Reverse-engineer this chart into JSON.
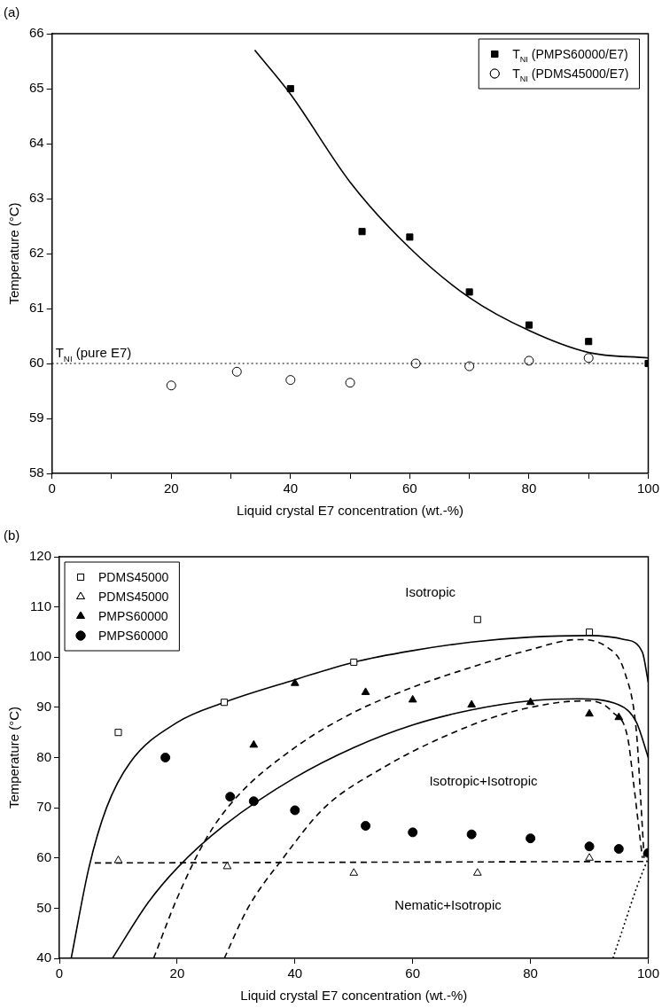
{
  "chart_data": [
    {
      "type": "scatter",
      "title": "(a)",
      "xlabel": "Liquid crystal E7 concentration (wt.-%)",
      "ylabel": "Temperature (°C)",
      "xlim": [
        0,
        100
      ],
      "xticks": [
        0,
        {
          "value": 10,
          "label": null
        },
        20,
        {
          "value": 30,
          "label": null
        },
        40,
        {
          "value": 50,
          "label": null
        },
        60,
        {
          "value": 70,
          "label": null
        },
        80,
        {
          "value": 90,
          "label": null
        },
        100
      ],
      "ylim": [
        58,
        66
      ],
      "yticks": [
        58,
        59,
        60,
        61,
        62,
        63,
        64,
        65,
        66
      ],
      "grid": false,
      "legend": "top right",
      "series": [
        {
          "name": "T$_{NI}$ (PMPS60000/E7)",
          "color": "#000000",
          "marker": "square",
          "x": [
            40,
            52,
            60,
            70,
            80,
            90,
            100
          ],
          "values": [
            65.0,
            62.4,
            62.3,
            61.3,
            60.7,
            60.4,
            60.0
          ]
        },
        {
          "name": "T$_{NI}$ (PDMS45000/E7)",
          "color": "#000000",
          "marker": "circle_open",
          "x": [
            20,
            31,
            40,
            50,
            61,
            70,
            80,
            90
          ],
          "values": [
            59.6,
            59.85,
            59.7,
            59.65,
            60.0,
            59.95,
            60.05,
            60.1
          ]
        },
        {
          "type": "line",
          "color": "#000000",
          "line_style": "solid",
          "x": [
            34,
            40,
            50,
            60,
            70,
            80,
            90,
            100
          ],
          "values": [
            65.7,
            64.9,
            63.3,
            62.1,
            61.2,
            60.6,
            60.2,
            60.1
          ]
        }
      ],
      "ref_lines": [
        {
          "axis": "y",
          "value": 60,
          "label": "T$_{NI}$ (pure E7)",
          "line_style": "dotted",
          "color": "#000000"
        }
      ]
    },
    {
      "type": "scatter",
      "title": "(b)",
      "xlabel": "Liquid crystal E7 concentration (wt.-%)",
      "ylabel": "Temperature (°C)",
      "xlim": [
        0,
        100
      ],
      "xticks": [
        0,
        20,
        40,
        60,
        80,
        100
      ],
      "ylim": [
        40,
        120
      ],
      "yticks": [
        40,
        50,
        60,
        70,
        80,
        90,
        100,
        110,
        120
      ],
      "grid": false,
      "legend": "top left",
      "series": [
        {
          "name": "PDMS45000",
          "color": "#000000",
          "marker": "square_open",
          "x": [
            10,
            28,
            50,
            71,
            90
          ],
          "values": [
            85,
            91,
            99,
            107.5,
            105
          ]
        },
        {
          "name": "PDMS45000",
          "color": "#000000",
          "marker": "triangle_open",
          "x": [
            10,
            28.5,
            50,
            71,
            90
          ],
          "values": [
            59.5,
            58.3,
            57,
            57,
            60
          ]
        },
        {
          "name": "PMPS60000",
          "color": "#000000",
          "marker": "triangle",
          "x": [
            33,
            40,
            52,
            60,
            70,
            80,
            90,
            95
          ],
          "values": [
            82.5,
            94.8,
            93,
            91.5,
            90.5,
            91,
            88.7,
            88
          ]
        },
        {
          "name": "PMPS60000",
          "color": "#000000",
          "marker": "circle",
          "x": [
            18,
            29,
            33,
            40,
            52,
            60,
            70,
            80,
            90,
            95,
            100
          ],
          "values": [
            80,
            72.2,
            71.3,
            69.5,
            66.4,
            65.1,
            64.7,
            63.9,
            62.3,
            61.8,
            61
          ]
        },
        {
          "type": "line",
          "color": "#000000",
          "line_style": "solid",
          "x": [
            2,
            5,
            8,
            12,
            20,
            28,
            40,
            50,
            60,
            70,
            80,
            90,
            96,
            99,
            100
          ],
          "values": [
            40,
            58,
            70,
            79,
            87,
            91,
            95.5,
            99,
            101.3,
            103,
            104,
            104.3,
            103.5,
            101,
            95
          ]
        },
        {
          "type": "line",
          "color": "#000000",
          "line_style": "solid",
          "x": [
            9,
            15,
            20,
            28,
            40,
            50,
            60,
            70,
            80,
            88,
            95,
            98,
            100
          ],
          "values": [
            40,
            51,
            58,
            66.5,
            76,
            82,
            86.5,
            89.5,
            91.3,
            91.7,
            90.5,
            87,
            80
          ]
        },
        {
          "type": "line",
          "color": "#000000",
          "line_style": "dashed",
          "x": [
            16,
            20,
            25,
            30,
            40,
            50,
            60,
            70,
            80,
            88,
            93,
            96,
            98,
            98.7,
            99.3
          ],
          "values": [
            40,
            52,
            64,
            72,
            82,
            89,
            94,
            98,
            101.5,
            103.5,
            102,
            97,
            85,
            72,
            60
          ]
        },
        {
          "type": "line",
          "color": "#000000",
          "line_style": "dashed",
          "x": [
            28,
            32,
            38,
            45,
            55,
            65,
            75,
            85,
            90,
            94,
            96.5,
            97.5,
            98.5,
            99
          ],
          "values": [
            40,
            50,
            60,
            70,
            78,
            84,
            88.5,
            91,
            91.3,
            89,
            84,
            75,
            65,
            60
          ]
        },
        {
          "type": "line",
          "color": "#000000",
          "line_style": "dotted",
          "x": [
            94,
            96,
            98,
            100
          ],
          "values": [
            40,
            47,
            54,
            60
          ]
        },
        {
          "type": "line",
          "color": "#000000",
          "line_style": "dashed",
          "x": [
            6,
            100
          ],
          "values": [
            59,
            59.3
          ]
        }
      ],
      "annotations": [
        "Isotropic",
        "Isotropic+Isotropic",
        "Nematic+Isotropic"
      ]
    }
  ]
}
